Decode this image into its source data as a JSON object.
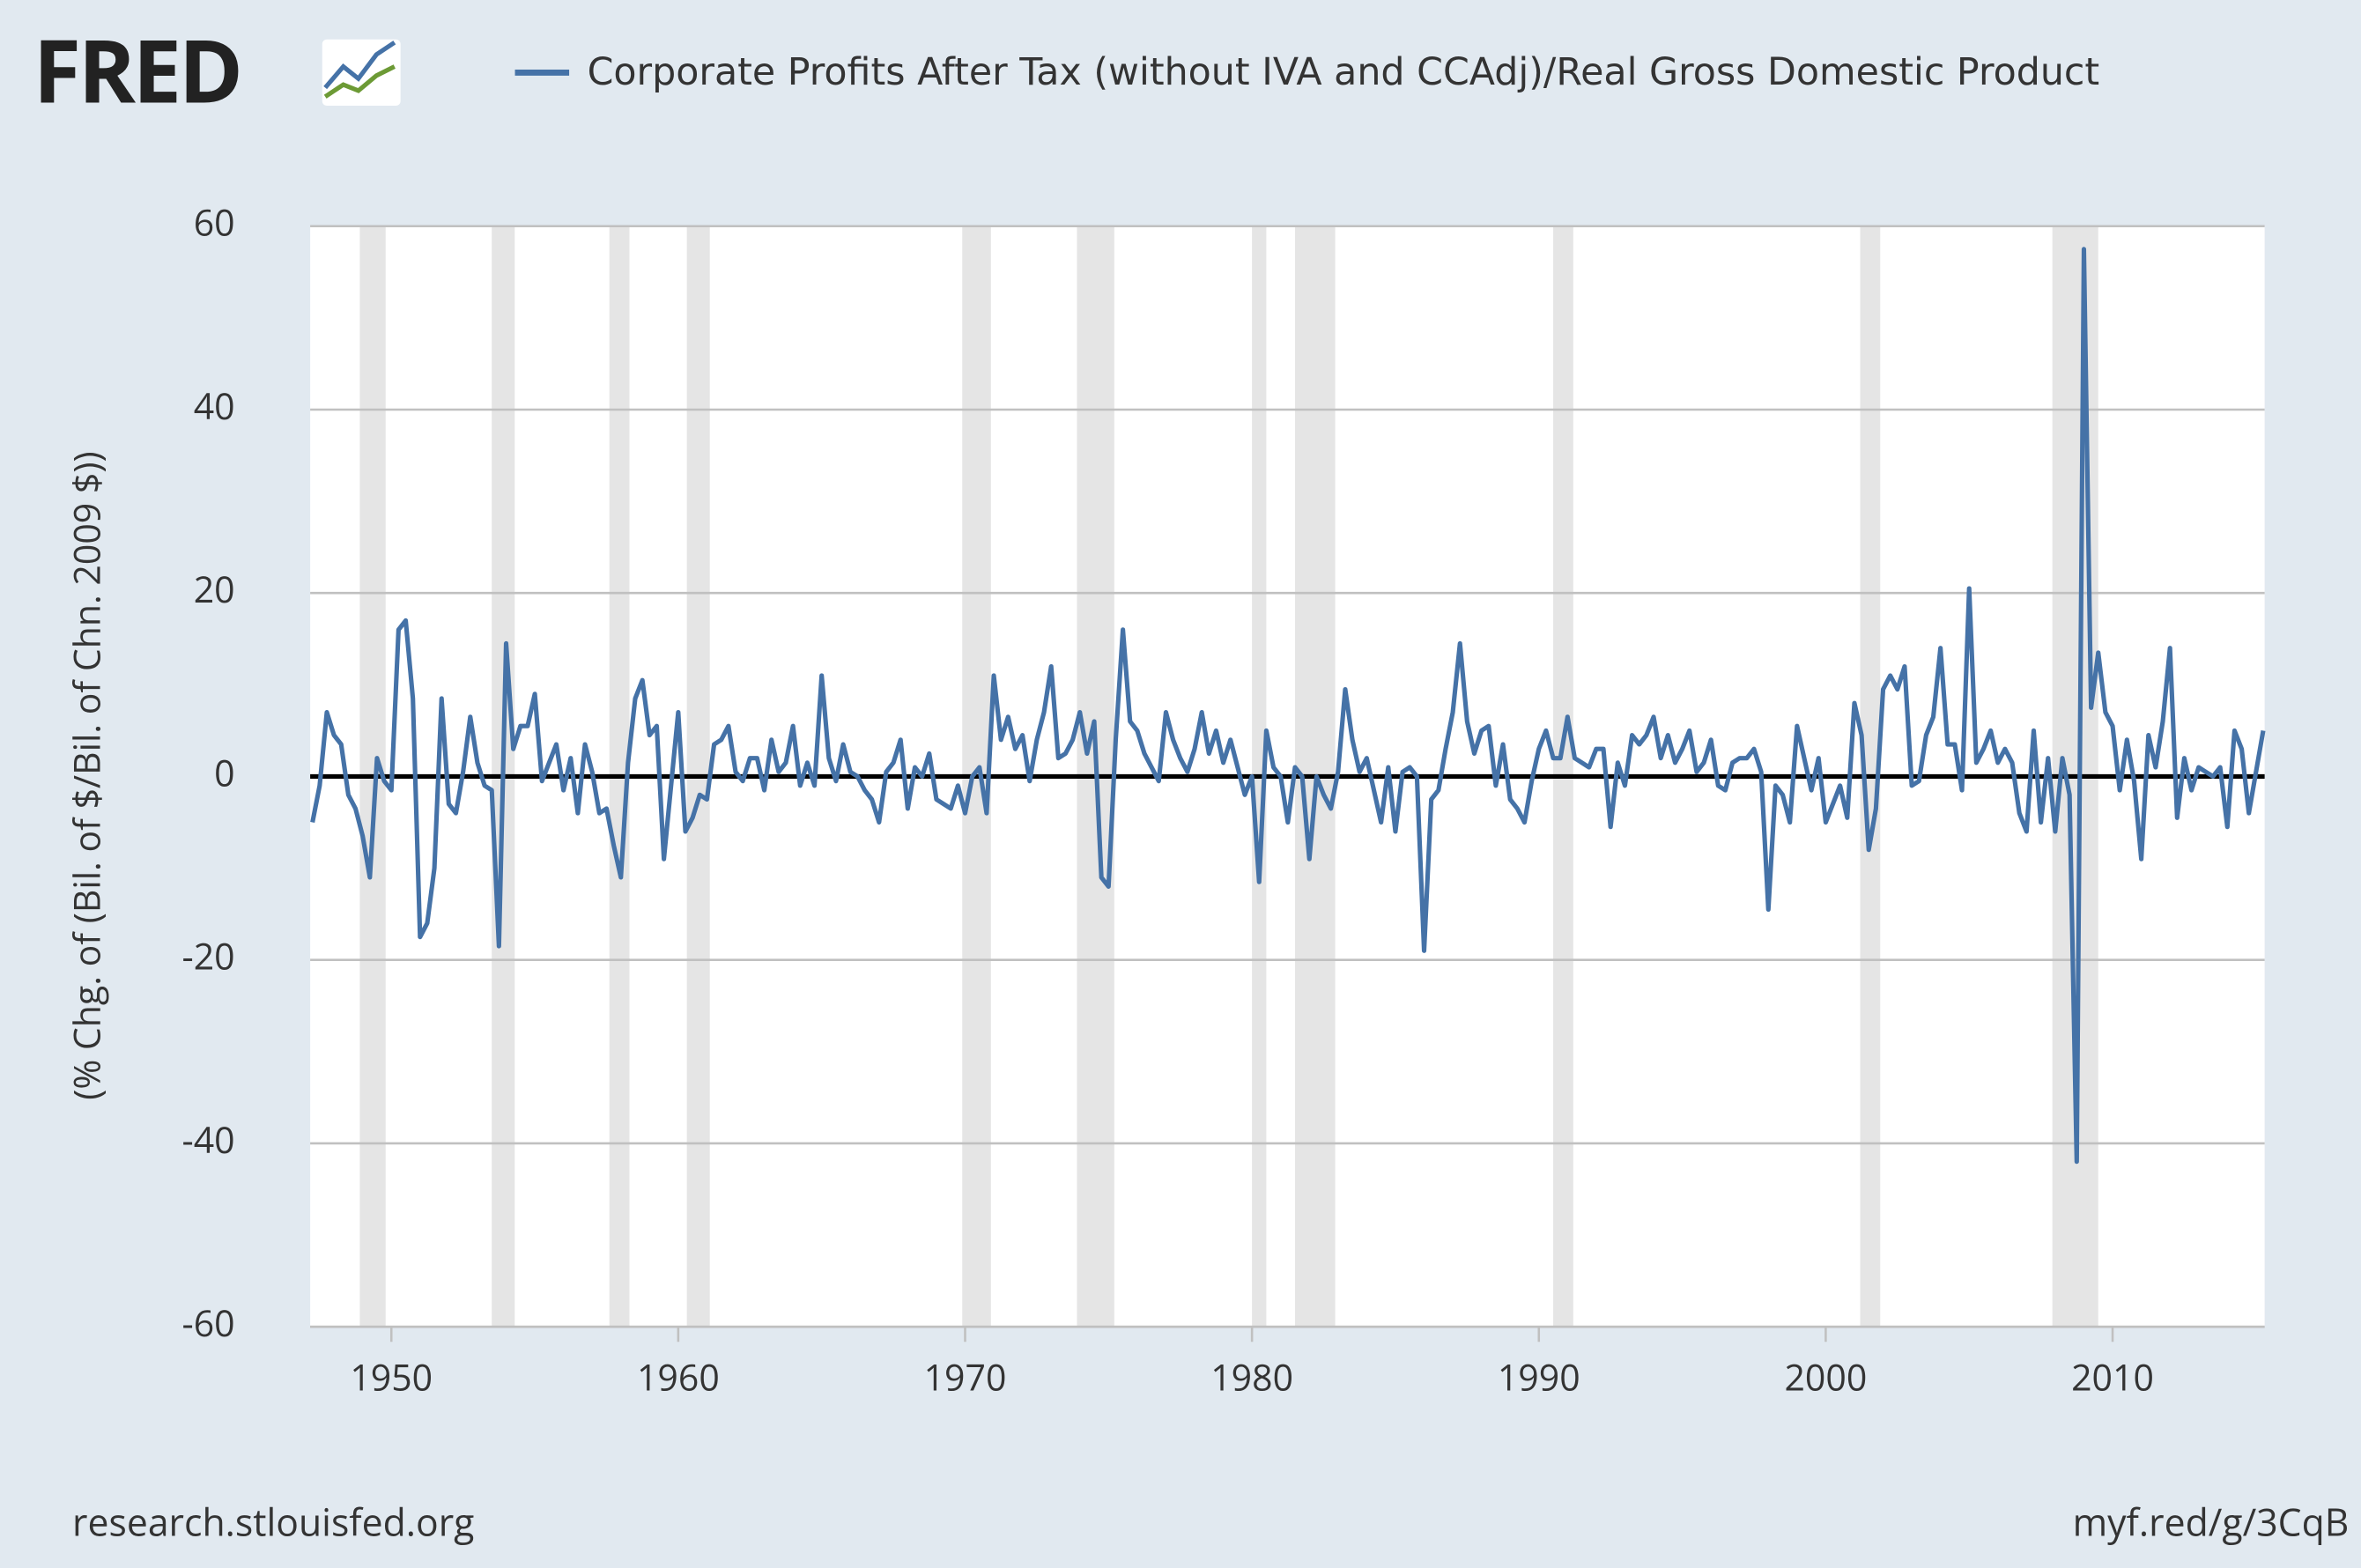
{
  "logo": "FRED",
  "source": "research.stlouisfed.org",
  "short_url": "myf.red/g/3CqB",
  "chart_data": {
    "type": "line",
    "ylabel": "(% Chg. of (Bil. of $/Bil. of Chn. 2009 $))",
    "xlim": [
      1947.17,
      2015.3
    ],
    "xticks": [
      1950,
      1960,
      1970,
      1980,
      1990,
      2000,
      2010
    ],
    "ylim": [
      -60,
      60
    ],
    "yticks": [
      -60,
      -40,
      -20,
      0,
      20,
      40,
      60
    ],
    "grid": true,
    "recessions": [
      [
        1948.9,
        1949.8
      ],
      [
        1953.5,
        1954.3
      ],
      [
        1957.6,
        1958.3
      ],
      [
        1960.3,
        1961.1
      ],
      [
        1969.9,
        1970.9
      ],
      [
        1973.9,
        1975.2
      ],
      [
        1980.0,
        1980.5
      ],
      [
        1981.5,
        1982.9
      ],
      [
        1990.5,
        1991.2
      ],
      [
        2001.2,
        2001.9
      ],
      [
        2007.9,
        2009.5
      ]
    ],
    "x": [
      1947.25,
      1947.5,
      1947.75,
      1948,
      1948.25,
      1948.5,
      1948.75,
      1949,
      1949.25,
      1949.5,
      1949.75,
      1950,
      1950.25,
      1950.5,
      1950.75,
      1951,
      1951.25,
      1951.5,
      1951.75,
      1952,
      1952.25,
      1952.5,
      1952.75,
      1953,
      1953.25,
      1953.5,
      1953.75,
      1954,
      1954.25,
      1954.5,
      1954.75,
      1955,
      1955.25,
      1955.5,
      1955.75,
      1956,
      1956.25,
      1956.5,
      1956.75,
      1957,
      1957.25,
      1957.5,
      1957.75,
      1958,
      1958.25,
      1958.5,
      1958.75,
      1959,
      1959.25,
      1959.5,
      1959.75,
      1960,
      1960.25,
      1960.5,
      1960.75,
      1961,
      1961.25,
      1961.5,
      1961.75,
      1962,
      1962.25,
      1962.5,
      1962.75,
      1963,
      1963.25,
      1963.5,
      1963.75,
      1964,
      1964.25,
      1964.5,
      1964.75,
      1965,
      1965.25,
      1965.5,
      1965.75,
      1966,
      1966.25,
      1966.5,
      1966.75,
      1967,
      1967.25,
      1967.5,
      1967.75,
      1968,
      1968.25,
      1968.5,
      1968.75,
      1969,
      1969.25,
      1969.5,
      1969.75,
      1970,
      1970.25,
      1970.5,
      1970.75,
      1971,
      1971.25,
      1971.5,
      1971.75,
      1972,
      1972.25,
      1972.5,
      1972.75,
      1973,
      1973.25,
      1973.5,
      1973.75,
      1974,
      1974.25,
      1974.5,
      1974.75,
      1975,
      1975.25,
      1975.5,
      1975.75,
      1976,
      1976.25,
      1976.5,
      1976.75,
      1977,
      1977.25,
      1977.5,
      1977.75,
      1978,
      1978.25,
      1978.5,
      1978.75,
      1979,
      1979.25,
      1979.5,
      1979.75,
      1980,
      1980.25,
      1980.5,
      1980.75,
      1981,
      1981.25,
      1981.5,
      1981.75,
      1982,
      1982.25,
      1982.5,
      1982.75,
      1983,
      1983.25,
      1983.5,
      1983.75,
      1984,
      1984.25,
      1984.5,
      1984.75,
      1985,
      1985.25,
      1985.5,
      1985.75,
      1986,
      1986.25,
      1986.5,
      1986.75,
      1987,
      1987.25,
      1987.5,
      1987.75,
      1988,
      1988.25,
      1988.5,
      1988.75,
      1989,
      1989.25,
      1989.5,
      1989.75,
      1990,
      1990.25,
      1990.5,
      1990.75,
      1991,
      1991.25,
      1991.5,
      1991.75,
      1992,
      1992.25,
      1992.5,
      1992.75,
      1993,
      1993.25,
      1993.5,
      1993.75,
      1994,
      1994.25,
      1994.5,
      1994.75,
      1995,
      1995.25,
      1995.5,
      1995.75,
      1996,
      1996.25,
      1996.5,
      1996.75,
      1997,
      1997.25,
      1997.5,
      1997.75,
      1998,
      1998.25,
      1998.5,
      1998.75,
      1999,
      1999.25,
      1999.5,
      1999.75,
      2000,
      2000.25,
      2000.5,
      2000.75,
      2001,
      2001.25,
      2001.5,
      2001.75,
      2002,
      2002.25,
      2002.5,
      2002.75,
      2003,
      2003.25,
      2003.5,
      2003.75,
      2004,
      2004.25,
      2004.5,
      2004.75,
      2005,
      2005.25,
      2005.5,
      2005.75,
      2006,
      2006.25,
      2006.5,
      2006.75,
      2007,
      2007.25,
      2007.5,
      2007.75,
      2008,
      2008.25,
      2008.5,
      2008.75,
      2009,
      2009.25,
      2009.5,
      2009.75,
      2010,
      2010.25,
      2010.5,
      2010.75,
      2011,
      2011.25,
      2011.5,
      2011.75,
      2012,
      2012.25,
      2012.5,
      2012.75,
      2013,
      2013.25,
      2013.5,
      2013.75,
      2014,
      2014.25,
      2014.5,
      2014.75,
      2015,
      2015.25
    ],
    "series": [
      {
        "name": "Corporate Profits After Tax (without IVA and CCAdj)/Real Gross Domestic Product",
        "color": "#4572a7",
        "values": [
          -5,
          -1,
          7,
          4.5,
          3.5,
          -2,
          -3.5,
          -6.5,
          -11,
          2,
          -0.5,
          -1.5,
          16,
          17,
          8.5,
          -17.5,
          -16,
          -10,
          8.5,
          -3,
          -4,
          0.5,
          6.5,
          1.5,
          -1,
          -1.5,
          -18.5,
          14.5,
          3,
          5.5,
          5.5,
          9,
          -0.5,
          1.5,
          3.5,
          -1.5,
          2,
          -4,
          3.5,
          0.5,
          -4,
          -3.5,
          -7.5,
          -11,
          1.5,
          8.5,
          10.5,
          4.5,
          5.5,
          -9,
          -1,
          7,
          -6,
          -4.5,
          -2,
          -2.5,
          3.5,
          4,
          5.5,
          0.5,
          -0.5,
          2,
          2,
          -1.5,
          4,
          0.5,
          1.5,
          5.5,
          -1,
          1.5,
          -1,
          11,
          2,
          -0.5,
          3.5,
          0.5,
          0,
          -1.5,
          -2.5,
          -5,
          0.5,
          1.5,
          4,
          -3.5,
          1,
          0,
          2.5,
          -2.5,
          -3,
          -3.5,
          -1,
          -4,
          0,
          1,
          -4,
          11,
          4,
          6.5,
          3,
          4.5,
          -0.5,
          4,
          7,
          12,
          2,
          2.5,
          4,
          7,
          2.5,
          6,
          -11,
          -12,
          4,
          16,
          6,
          5,
          2.5,
          1,
          -0.5,
          7,
          4,
          2,
          0.5,
          3,
          7,
          2.5,
          5,
          1.5,
          4,
          1,
          -2,
          0,
          -11.5,
          5,
          1,
          0,
          -5,
          1,
          0,
          -9,
          0,
          -2,
          -3.5,
          0.5,
          9.5,
          4,
          0.5,
          2,
          -1.5,
          -5,
          1,
          -6,
          0.5,
          1,
          0,
          -19,
          -2.5,
          -1.5,
          3,
          7,
          14.5,
          6,
          2.5,
          5,
          5.5,
          -1,
          3.5,
          -2.5,
          -3.5,
          -5,
          -0.5,
          3,
          5,
          2,
          2,
          6.5,
          2,
          1.5,
          1,
          3,
          3,
          -5.5,
          1.5,
          -1,
          4.5,
          3.5,
          4.5,
          6.5,
          2,
          4.5,
          1.5,
          3,
          5,
          0.5,
          1.5,
          4,
          -1,
          -1.5,
          1.5,
          2,
          2,
          3,
          0.5,
          -14.5,
          -1,
          -2,
          -5,
          5.5,
          2,
          -1.5,
          2,
          -5,
          -3,
          -1,
          -4.5,
          8,
          4.5,
          -8,
          -3.5,
          9.5,
          11,
          9.5,
          12,
          -1,
          -0.5,
          4.5,
          6.5,
          14,
          3.5,
          3.5,
          -1.5,
          20.5,
          1.5,
          3,
          5,
          1.5,
          3,
          1.5,
          -4,
          -6,
          5,
          -5,
          2,
          -6,
          2,
          -2,
          -42,
          57.5,
          7.5,
          13.5,
          7,
          5.5,
          -1.5,
          4,
          -0.5,
          -9,
          4.5,
          1,
          6,
          14,
          -4.5,
          2,
          -1.5,
          1,
          0.5,
          0,
          1,
          -5.5,
          5,
          3,
          -4,
          0.5,
          5
        ]
      }
    ]
  }
}
